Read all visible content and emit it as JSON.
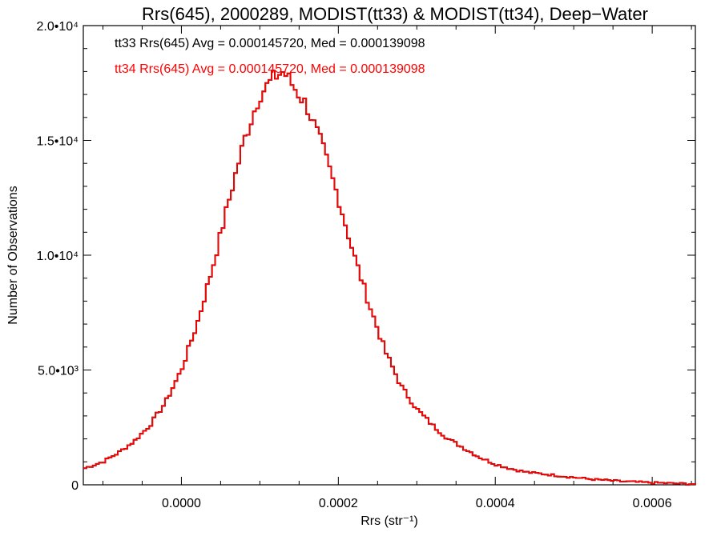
{
  "chart_data": {
    "type": "histogram-step",
    "title": "Rrs(645), 2000289, MODIST(tt33) & MODIST(tt34), Deep−Water",
    "xlabel": "Rrs (str⁻¹)",
    "ylabel": "Number of Observations",
    "xlim": [
      -0.000125,
      0.000655
    ],
    "ylim": [
      0,
      20000
    ],
    "x_ticks": [
      {
        "value": 0.0,
        "label": "0.0000"
      },
      {
        "value": 0.0002,
        "label": "0.0002"
      },
      {
        "value": 0.0004,
        "label": "0.0004"
      },
      {
        "value": 0.0006,
        "label": "0.0006"
      }
    ],
    "y_ticks": [
      {
        "value": 0,
        "label": "0"
      },
      {
        "value": 5000,
        "label": "5.0•10³"
      },
      {
        "value": 10000,
        "label": "1.0•10⁴"
      },
      {
        "value": 15000,
        "label": "1.5•10⁴"
      },
      {
        "value": 20000,
        "label": "2.0•10⁴"
      }
    ],
    "annotations": [
      {
        "text": "tt33 Rrs(645) Avg = 0.000145720, Med = 0.000139098",
        "color": "#000000"
      },
      {
        "text": "tt34 Rrs(645) Avg = 0.000145720, Med = 0.000139098",
        "color": "#ff0000"
      }
    ],
    "series": [
      {
        "name": "tt33",
        "color": "#000000",
        "x": [
          -0.000125,
          -0.0001,
          -8e-05,
          -6e-05,
          -4e-05,
          -2e-05,
          0.0,
          2e-05,
          4e-05,
          6e-05,
          8e-05,
          0.0001,
          0.00012,
          0.00013,
          0.00014,
          0.00016,
          0.00018,
          0.0002,
          0.00022,
          0.00024,
          0.00026,
          0.00028,
          0.0003,
          0.00032,
          0.00034,
          0.00036,
          0.00038,
          0.0004,
          0.00042,
          0.00044,
          0.00048,
          0.00052,
          0.00056,
          0.0006,
          0.00063,
          0.000655
        ],
        "values": [
          700,
          1000,
          1400,
          1900,
          2600,
          3600,
          5000,
          7000,
          9500,
          12300,
          15000,
          17000,
          17800,
          18000,
          17500,
          16500,
          14700,
          12500,
          10000,
          7800,
          5800,
          4300,
          3300,
          2600,
          2000,
          1600,
          1200,
          900,
          700,
          550,
          400,
          250,
          150,
          90,
          60,
          30
        ]
      },
      {
        "name": "tt34",
        "color": "#ff0000",
        "x": [
          -0.000125,
          -0.0001,
          -8e-05,
          -6e-05,
          -4e-05,
          -2e-05,
          0.0,
          2e-05,
          4e-05,
          6e-05,
          8e-05,
          0.0001,
          0.00012,
          0.00013,
          0.00014,
          0.00016,
          0.00018,
          0.0002,
          0.00022,
          0.00024,
          0.00026,
          0.00028,
          0.0003,
          0.00032,
          0.00034,
          0.00036,
          0.00038,
          0.0004,
          0.00042,
          0.00044,
          0.00048,
          0.00052,
          0.00056,
          0.0006,
          0.00063,
          0.000655
        ],
        "values": [
          700,
          1000,
          1400,
          1900,
          2600,
          3600,
          5000,
          7000,
          9500,
          12300,
          15000,
          17000,
          17800,
          18000,
          17500,
          16500,
          14700,
          12500,
          10000,
          7800,
          5800,
          4300,
          3300,
          2600,
          2000,
          1600,
          1200,
          900,
          700,
          550,
          400,
          250,
          150,
          90,
          60,
          30
        ]
      }
    ]
  }
}
